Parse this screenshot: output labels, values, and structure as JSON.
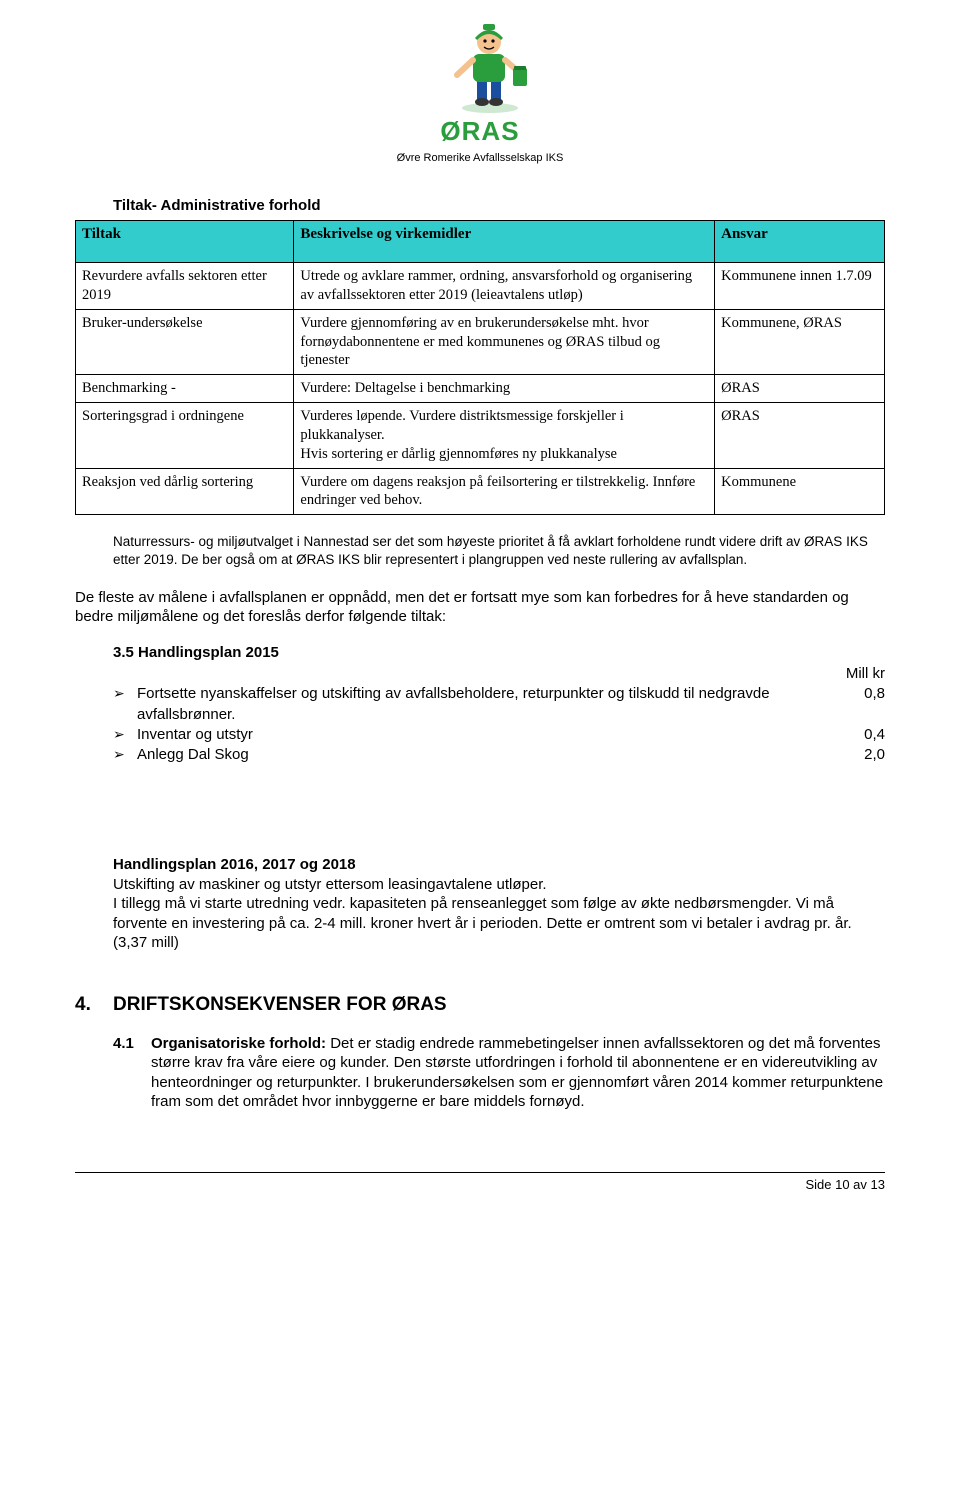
{
  "logo": {
    "brand": "ØRAS",
    "subtitle": "Øvre Romerike Avfallsselskap IKS",
    "mascot_colors": {
      "hat": "#2a9d3c",
      "shirt": "#2a9d3c",
      "pants": "#1a4fa0",
      "skin": "#f4c28e",
      "boots": "#333333"
    }
  },
  "section_title": "Tiltak- Administrative forhold",
  "table": {
    "headers": [
      "Tiltak",
      "Beskrivelse og virkemidler",
      "Ansvar"
    ],
    "header_bg": "#33cccc",
    "border_color": "#000000",
    "col_widths": [
      "27%",
      "52%",
      "21%"
    ],
    "rows": [
      {
        "tiltak": "Revurdere avfalls sektoren etter 2019",
        "beskrivelse": "Utrede og avklare rammer, ordning, ansvarsforhold og organisering av avfallssektoren etter 2019 (leieavtalens utløp)",
        "ansvar": "Kommunene innen 1.7.09"
      },
      {
        "tiltak": "Bruker-undersøkelse",
        "beskrivelse": "Vurdere gjennomføring av en brukerundersøkelse mht. hvor fornøydabonnentene er med kommunenes og ØRAS tilbud og tjenester",
        "ansvar": "Kommunene, ØRAS"
      },
      {
        "tiltak": "Benchmarking -",
        "beskrivelse": "Vurdere: Deltagelse i benchmarking",
        "ansvar": "ØRAS"
      },
      {
        "tiltak": "Sorteringsgrad i ordningene",
        "beskrivelse": "Vurderes løpende. Vurdere distriktsmessige forskjeller i plukkanalyser.\nHvis sortering er dårlig gjennomføres ny plukkanalyse",
        "ansvar": "ØRAS"
      },
      {
        "tiltak": "Reaksjon ved dårlig sortering",
        "beskrivelse": "Vurdere om dagens reaksjon på feilsortering er tilstrekkelig. Innføre endringer ved behov.",
        "ansvar": "Kommunene"
      }
    ]
  },
  "note_text": "Naturressurs- og miljøutvalget i Nannestad ser det som høyeste prioritet å få avklart forholdene rundt videre drift av ØRAS IKS etter 2019. De ber også om at ØRAS IKS blir representert i plangruppen ved neste rullering av avfallsplan.",
  "body_para": "De fleste av målene i avfallsplanen er oppnådd, men det er fortsatt mye som kan forbedres for å heve standarden og bedre miljømålene  og det foreslås derfor følgende tiltak:",
  "plan2015": {
    "heading": "3.5 Handlingsplan 2015",
    "unit_label": "Mill kr",
    "items": [
      {
        "text": "Fortsette nyanskaffelser og utskifting av avfallsbeholdere, returpunkter og tilskudd til nedgravde avfallsbrønner.",
        "value": "0,8"
      },
      {
        "text": "Inventar og utstyr",
        "value": "0,4"
      },
      {
        "text": "Anlegg Dal Skog",
        "value": "2,0"
      }
    ]
  },
  "plan_later": {
    "heading": "Handlingsplan 2016, 2017 og 2018",
    "body": "Utskifting av maskiner og utstyr ettersom leasingavtalene utløper.\nI tillegg må vi starte utredning vedr. kapasiteten på renseanlegget som følge av økte nedbørsmengder. Vi må forvente en investering på ca. 2-4 mill. kroner hvert år i perioden. Dette er omtrent som vi betaler i avdrag pr. år. (3,37 mill)"
  },
  "section4": {
    "num": "4.",
    "title": "DRIFTSKONSEKVENSER FOR ØRAS",
    "sub_num": "4.1",
    "sub_lead": "Organisatoriske forhold:",
    "sub_body": " Det er stadig endrede rammebetingelser innen avfallssektoren og det må forventes større krav fra våre eiere og kunder. Den største utfordringen i forhold til abonnentene er en videreutvikling av henteordninger og returpunkter. I brukerundersøkelsen som er gjennomført våren 2014 kommer returpunktene fram som det området hvor innbyggerne er bare middels fornøyd."
  },
  "footer": "Side 10 av 13",
  "colors": {
    "brand_green": "#2a9d3c",
    "table_header": "#33cccc",
    "text": "#000000",
    "background": "#ffffff"
  },
  "typography": {
    "body_font": "Arial",
    "table_body_font": "Times New Roman",
    "body_size_pt": 11,
    "heading4_size_pt": 14
  }
}
